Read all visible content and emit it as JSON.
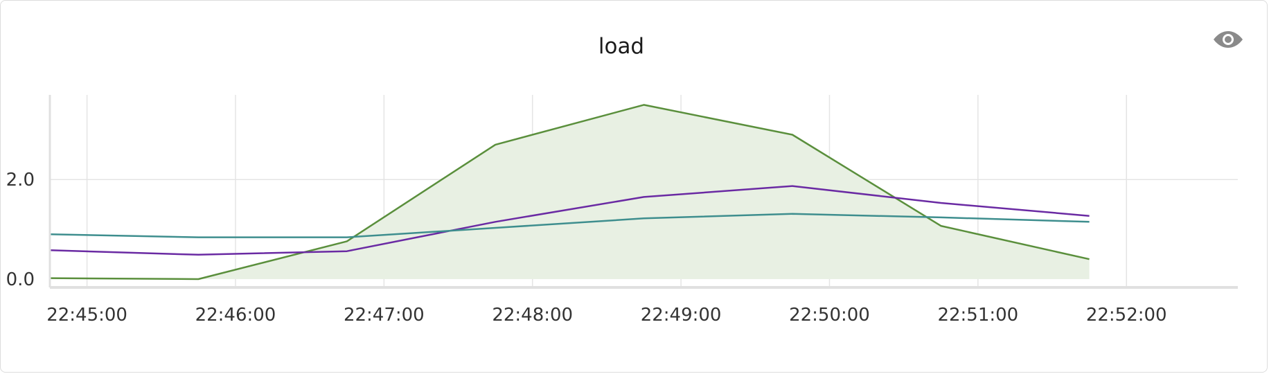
{
  "panel": {
    "title": "load",
    "visibility_icon": "eye-icon"
  },
  "chart_data": {
    "type": "line",
    "title": "load",
    "xlabel": "",
    "ylabel": "",
    "x_range": [
      "22:44:45",
      "22:52:45"
    ],
    "ylim": [
      0,
      3.7
    ],
    "y_ticks": [
      {
        "value": 0.0,
        "label": "0.0"
      },
      {
        "value": 2.0,
        "label": "2.0"
      }
    ],
    "x_ticks": [
      "22:45:00",
      "22:46:00",
      "22:47:00",
      "22:48:00",
      "22:49:00",
      "22:50:00",
      "22:51:00",
      "22:52:00"
    ],
    "grid": true,
    "legend": "none",
    "x": [
      "22:44:45",
      "22:45:45",
      "22:46:45",
      "22:47:45",
      "22:48:45",
      "22:49:45",
      "22:50:45",
      "22:51:45"
    ],
    "series": [
      {
        "values": [
          0.02,
          0.0,
          0.76,
          2.7,
          3.5,
          2.9,
          1.07,
          0.4
        ],
        "color": "#5a8f3c",
        "fill": "#e8f0e3",
        "area": true
      },
      {
        "values": [
          0.58,
          0.49,
          0.56,
          1.15,
          1.65,
          1.87,
          1.53,
          1.27
        ],
        "color": "#6a2aa3",
        "area": false
      },
      {
        "values": [
          0.9,
          0.84,
          0.84,
          1.03,
          1.22,
          1.31,
          1.24,
          1.15
        ],
        "color": "#3e8e8e",
        "area": false
      }
    ]
  }
}
